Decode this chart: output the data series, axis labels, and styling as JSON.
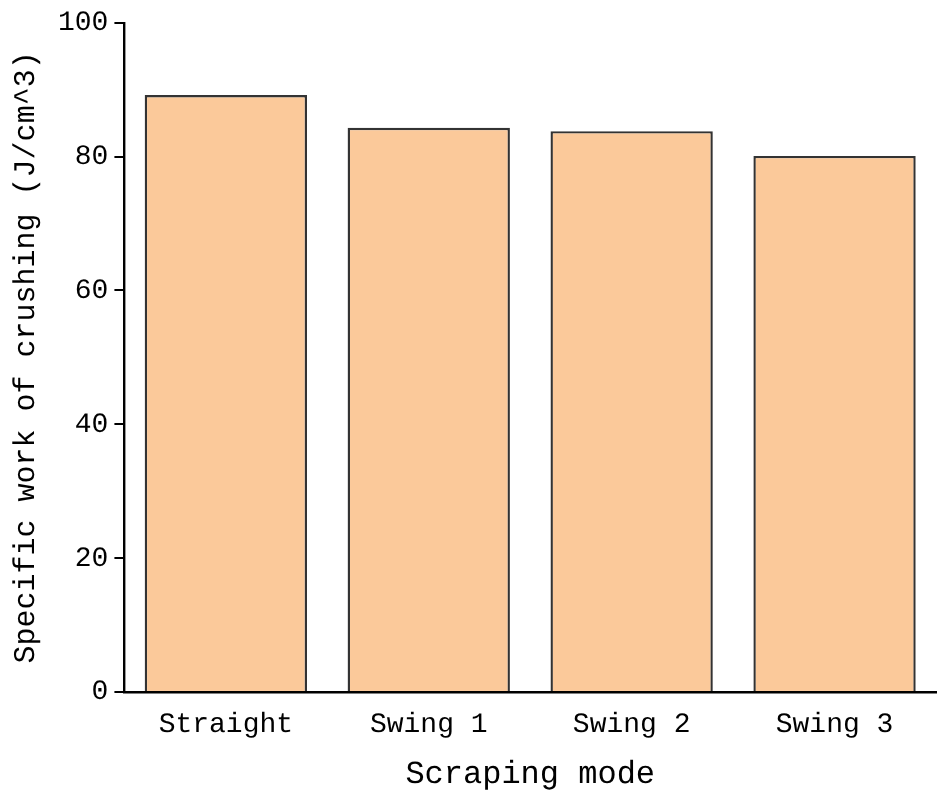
{
  "chart_data": {
    "type": "bar",
    "xlabel": "Scraping mode",
    "ylabel": "Specific work of crushing (J/cm^3)",
    "categories": [
      "Straight",
      "Swing 1",
      "Swing 2",
      "Swing 3"
    ],
    "values": [
      89.2,
      84.3,
      83.8,
      80.1
    ],
    "color": "#fbc99a",
    "ylim": [
      0,
      100
    ],
    "yticks": [
      0,
      20,
      40,
      60,
      80,
      100
    ],
    "grid": false,
    "legend": false
  }
}
